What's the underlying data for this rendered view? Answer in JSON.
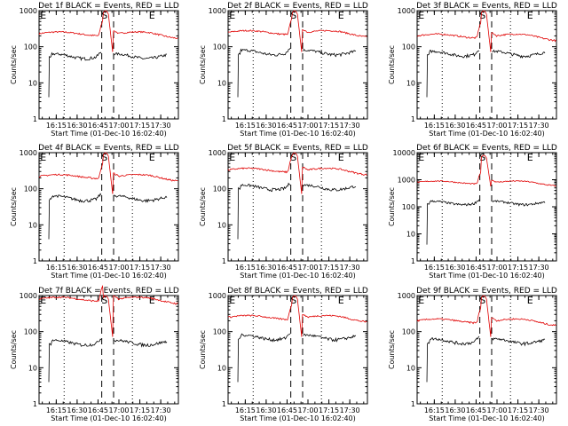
{
  "chart_data": [
    {
      "type": "line",
      "title": "Det 1f BLACK = Events, RED = LLD",
      "xlabel": "Start Time (01-Dec-10 16:02:40)",
      "ylabel": "Counts/sec",
      "ylim": [
        1,
        1000
      ],
      "ytick_labels": [
        "1",
        "10",
        "100",
        "1000"
      ],
      "xtick_labels": [
        "16:15",
        "16:30",
        "16:45",
        "17:00",
        "17:15",
        "17:30"
      ],
      "x_ticks_min": [
        12.33,
        27.33,
        42.33,
        57.33,
        72.33,
        87.33
      ],
      "xlim": [
        0,
        100
      ],
      "markers": [
        {
          "label": "E",
          "x": 3
        },
        {
          "label": "S",
          "x": 47
        },
        {
          "label": "E",
          "x": 81
        }
      ],
      "dashed_lines_x": [
        45,
        53.5
      ],
      "dotted_lines_x": [
        18,
        67
      ],
      "lld_level": 230,
      "lld_peak": 1000,
      "events_level": 55,
      "events_start": 7
    },
    {
      "type": "line",
      "title": "Det 2f BLACK = Events, RED = LLD",
      "xlabel": "Start Time (01-Dec-10 16:02:40)",
      "ylabel": "Counts/sec",
      "ylim": [
        1,
        1000
      ],
      "ytick_labels": [
        "1",
        "10",
        "100",
        "1000"
      ],
      "xtick_labels": [
        "16:15",
        "16:30",
        "16:45",
        "17:00",
        "17:15",
        "17:30"
      ],
      "x_ticks_min": [
        12.33,
        27.33,
        42.33,
        57.33,
        72.33,
        87.33
      ],
      "xlim": [
        0,
        100
      ],
      "markers": [
        {
          "label": "E",
          "x": 3
        },
        {
          "label": "S",
          "x": 47
        },
        {
          "label": "E",
          "x": 81
        }
      ],
      "dashed_lines_x": [
        45,
        53.5
      ],
      "dotted_lines_x": [
        18,
        67
      ],
      "lld_level": 250,
      "lld_peak": 1000,
      "events_level": 70,
      "events_start": 7
    },
    {
      "type": "line",
      "title": "Det 3f BLACK = Events, RED = LLD",
      "xlabel": "Start Time (01-Dec-10 16:02:40)",
      "ylabel": "Counts/sec",
      "ylim": [
        1,
        1000
      ],
      "ytick_labels": [
        "1",
        "10",
        "100",
        "1000"
      ],
      "xtick_labels": [
        "16:15",
        "16:30",
        "16:45",
        "17:00",
        "17:15",
        "17:30"
      ],
      "x_ticks_min": [
        12.33,
        27.33,
        42.33,
        57.33,
        72.33,
        87.33
      ],
      "xlim": [
        0,
        100
      ],
      "markers": [
        {
          "label": "E",
          "x": 3
        },
        {
          "label": "S",
          "x": 47
        },
        {
          "label": "E",
          "x": 81
        }
      ],
      "dashed_lines_x": [
        45,
        53.5
      ],
      "dotted_lines_x": [
        18,
        67
      ],
      "lld_level": 200,
      "lld_peak": 1000,
      "events_level": 65,
      "events_start": 7
    },
    {
      "type": "line",
      "title": "Det 4f BLACK = Events, RED = LLD",
      "xlabel": "Start Time (01-Dec-10 16:02:40)",
      "ylabel": "Counts/sec",
      "ylim": [
        1,
        1000
      ],
      "ytick_labels": [
        "1",
        "10",
        "100",
        "1000"
      ],
      "xtick_labels": [
        "16:15",
        "16:30",
        "16:45",
        "17:00",
        "17:15",
        "17:30"
      ],
      "x_ticks_min": [
        12.33,
        27.33,
        42.33,
        57.33,
        72.33,
        87.33
      ],
      "xlim": [
        0,
        100
      ],
      "markers": [
        {
          "label": "E",
          "x": 3
        },
        {
          "label": "S",
          "x": 47
        },
        {
          "label": "E",
          "x": 81
        }
      ],
      "dashed_lines_x": [
        45,
        53.5
      ],
      "dotted_lines_x": [
        18,
        67
      ],
      "lld_level": 220,
      "lld_peak": 1000,
      "events_level": 55,
      "events_start": 7
    },
    {
      "type": "line",
      "title": "Det 5f BLACK = Events, RED = LLD",
      "xlabel": "Start Time (01-Dec-10 16:02:40)",
      "ylabel": "Counts/sec",
      "ylim": [
        1,
        1000
      ],
      "ytick_labels": [
        "1",
        "10",
        "100",
        "1000"
      ],
      "xtick_labels": [
        "16:15",
        "16:30",
        "16:45",
        "17:00",
        "17:15",
        "17:30"
      ],
      "x_ticks_min": [
        12.33,
        27.33,
        42.33,
        57.33,
        72.33,
        87.33
      ],
      "xlim": [
        0,
        100
      ],
      "markers": [
        {
          "label": "E",
          "x": 3
        },
        {
          "label": "S",
          "x": 47
        },
        {
          "label": "E",
          "x": 81
        }
      ],
      "dashed_lines_x": [
        45,
        53.5
      ],
      "dotted_lines_x": [
        18,
        67
      ],
      "lld_level": 330,
      "lld_peak": 1000,
      "events_level": 110,
      "events_start": 7
    },
    {
      "type": "line",
      "title": "Det 6f BLACK = Events, RED = LLD",
      "xlabel": "Start Time (01-Dec-10 16:02:40)",
      "ylabel": "Counts/sec",
      "ylim": [
        1,
        10000
      ],
      "ytick_labels": [
        "1",
        "10",
        "100",
        "1000",
        "10000"
      ],
      "xtick_labels": [
        "16:15",
        "16:30",
        "16:45",
        "17:00",
        "17:15",
        "17:30"
      ],
      "x_ticks_min": [
        12.33,
        27.33,
        42.33,
        57.33,
        72.33,
        87.33
      ],
      "xlim": [
        0,
        100
      ],
      "markers": [
        {
          "label": "E",
          "x": 3
        },
        {
          "label": "S",
          "x": 47
        },
        {
          "label": "E",
          "x": 81
        }
      ],
      "dashed_lines_x": [
        45,
        53.5
      ],
      "dotted_lines_x": [
        18,
        67
      ],
      "lld_level": 800,
      "lld_peak": 8000,
      "events_level": 140,
      "events_start": 7
    },
    {
      "type": "line",
      "title": "Det 7f BLACK = Events, RED = LLD",
      "xlabel": "Start Time (01-Dec-10 16:02:40)",
      "ylabel": "Counts/sec",
      "ylim": [
        1,
        1000
      ],
      "ytick_labels": [
        "1",
        "10",
        "100",
        "1000"
      ],
      "xtick_labels": [
        "16:15",
        "16:30",
        "16:45",
        "17:00",
        "17:15",
        "17:30"
      ],
      "x_ticks_min": [
        12.33,
        27.33,
        42.33,
        57.33,
        72.33,
        87.33
      ],
      "xlim": [
        0,
        100
      ],
      "markers": [
        {
          "label": "E",
          "x": 3
        },
        {
          "label": "S",
          "x": 47
        },
        {
          "label": "E",
          "x": 81
        }
      ],
      "dashed_lines_x": [
        45,
        53.5
      ],
      "dotted_lines_x": [
        18,
        67
      ],
      "lld_level": 800,
      "lld_peak": 1000,
      "events_level": 50,
      "events_start": 7
    },
    {
      "type": "line",
      "title": "Det 8f BLACK = Events, RED = LLD",
      "xlabel": "Start Time (01-Dec-10 16:02:40)",
      "ylabel": "Counts/sec",
      "ylim": [
        1,
        1000
      ],
      "ytick_labels": [
        "1",
        "10",
        "100",
        "1000"
      ],
      "xtick_labels": [
        "16:15",
        "16:30",
        "16:45",
        "17:00",
        "17:15",
        "17:30"
      ],
      "x_ticks_min": [
        12.33,
        27.33,
        42.33,
        57.33,
        72.33,
        87.33
      ],
      "xlim": [
        0,
        100
      ],
      "markers": [
        {
          "label": "E",
          "x": 3
        },
        {
          "label": "S",
          "x": 47
        },
        {
          "label": "E",
          "x": 81
        }
      ],
      "dashed_lines_x": [
        45,
        53.5
      ],
      "dotted_lines_x": [
        18,
        67
      ],
      "lld_level": 250,
      "lld_peak": 1000,
      "events_level": 70,
      "events_start": 7
    },
    {
      "type": "line",
      "title": "Det 9f BLACK = Events, RED = LLD",
      "xlabel": "Start Time (01-Dec-10 16:02:40)",
      "ylabel": "Counts/sec",
      "ylim": [
        1,
        1000
      ],
      "ytick_labels": [
        "1",
        "10",
        "100",
        "1000"
      ],
      "xtick_labels": [
        "16:15",
        "16:30",
        "16:45",
        "17:00",
        "17:15",
        "17:30"
      ],
      "x_ticks_min": [
        12.33,
        27.33,
        42.33,
        57.33,
        72.33,
        87.33
      ],
      "xlim": [
        0,
        100
      ],
      "markers": [
        {
          "label": "E",
          "x": 3
        },
        {
          "label": "S",
          "x": 47
        },
        {
          "label": "E",
          "x": 81
        }
      ],
      "dashed_lines_x": [
        45,
        53.5
      ],
      "dotted_lines_x": [
        18,
        67
      ],
      "lld_level": 200,
      "lld_peak": 1000,
      "events_level": 55,
      "events_start": 7
    }
  ],
  "colors": {
    "events": "#000000",
    "lld": "#e00000"
  }
}
